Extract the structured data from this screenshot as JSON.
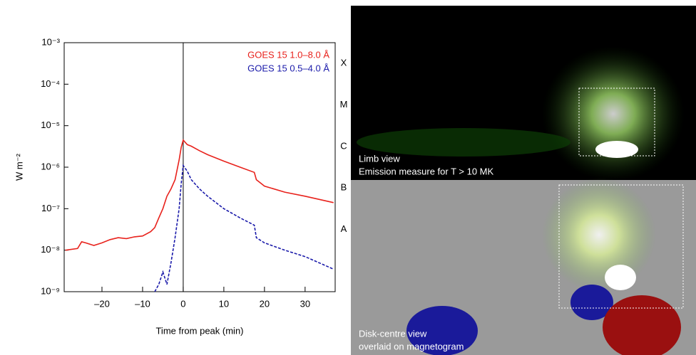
{
  "chart_data": {
    "type": "line",
    "yscale": "log",
    "xlabel": "Time from peak (min)",
    "ylabel": "W m⁻²",
    "x": [
      -29,
      -26,
      -25,
      -24,
      -22,
      -20,
      -18,
      -16,
      -14,
      -12,
      -10,
      -8,
      -7,
      -6,
      -5,
      -4,
      -3,
      -2,
      -1,
      -0.5,
      0,
      1,
      2,
      4,
      6,
      10,
      14,
      17.5,
      18,
      20,
      25,
      30,
      37
    ],
    "series": [
      {
        "name": "GOES 15 1.0–8.0 Å",
        "color": "#e8221c",
        "dash": false,
        "values": [
          1e-08,
          1.1e-08,
          1.6e-08,
          1.5e-08,
          1.3e-08,
          1.5e-08,
          1.8e-08,
          2e-08,
          1.9e-08,
          2.1e-08,
          2.2e-08,
          2.8e-08,
          3.5e-08,
          6e-08,
          1e-07,
          2e-07,
          3e-07,
          5e-07,
          1.5e-06,
          3e-06,
          4.5e-06,
          3.5e-06,
          3.2e-06,
          2.5e-06,
          2e-06,
          1.4e-06,
          1e-06,
          7.5e-07,
          5e-07,
          3.5e-07,
          2.5e-07,
          2e-07,
          1.4e-07
        ]
      },
      {
        "name": "GOES 15 0.5–4.0 Å",
        "color": "#1a1aaa",
        "dash": true,
        "values": [
          null,
          null,
          null,
          null,
          null,
          null,
          null,
          null,
          null,
          null,
          null,
          null,
          1e-09,
          1.5e-09,
          3e-09,
          1.5e-09,
          5e-09,
          2e-08,
          1e-07,
          4e-07,
          1.1e-06,
          8e-07,
          5e-07,
          3e-07,
          2e-07,
          1e-07,
          6e-08,
          4e-08,
          2e-08,
          1.5e-08,
          1e-08,
          7e-09,
          3.5e-09
        ]
      }
    ],
    "xlim": [
      -29.3,
      37.4
    ],
    "xticks": [
      {
        "value": -20,
        "label": "–20"
      },
      {
        "value": -10,
        "label": "–10"
      },
      0,
      10,
      20,
      30
    ],
    "ylim": [
      1e-09,
      0.001
    ],
    "yticks": [
      {
        "value": 1e-09,
        "label": "10⁻⁹"
      },
      {
        "value": 1e-08,
        "label": "10⁻⁸"
      },
      {
        "value": 1e-07,
        "label": "10⁻⁷"
      },
      {
        "value": 1e-06,
        "label": "10⁻⁶"
      },
      {
        "value": 1e-05,
        "label": "10⁻⁵"
      },
      {
        "value": 0.0001,
        "label": "10⁻⁴"
      },
      {
        "value": 0.001,
        "label": "10⁻³"
      }
    ],
    "classes": [
      {
        "label": "X",
        "value": 0.0001
      },
      {
        "label": "M",
        "value": 1e-05
      },
      {
        "label": "C",
        "value": 1e-06
      },
      {
        "label": "B",
        "value": 1e-07
      },
      {
        "label": "A",
        "value": 1e-08
      }
    ],
    "vline": 0
  },
  "images": {
    "top": [
      "Limb view",
      "Emission measure for T > 10 MK"
    ],
    "bottom": [
      "Disk-centre view",
      "overlaid on magnetogram"
    ]
  }
}
